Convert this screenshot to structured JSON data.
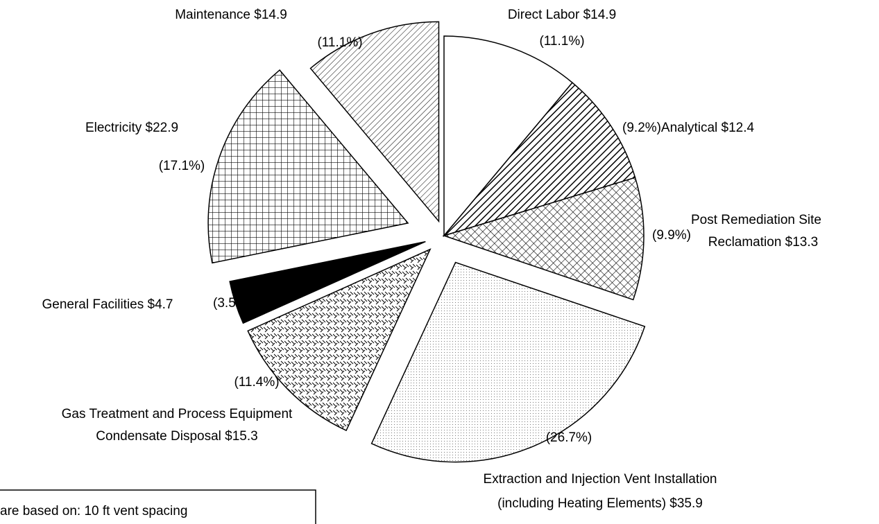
{
  "chart_data": {
    "type": "pie",
    "categories": [
      [
        "Direct Labor  $14.9"
      ],
      [
        "Analytical $12.4"
      ],
      [
        "Post Remediation Site",
        "Reclamation $13.3"
      ],
      [
        "Extraction and Injection Vent Installation",
        "(including Heating Elements)  $35.9"
      ],
      [
        "Gas Treatment and Process Equipment",
        "Condensate Disposal $15.3"
      ],
      [
        "General Facilities $4.7"
      ],
      [
        "Electricity $22.9"
      ],
      [
        "Maintenance $14.9"
      ]
    ],
    "values": [
      11.1,
      9.2,
      9.9,
      26.7,
      11.4,
      3.5,
      17.1,
      11.1
    ],
    "value_labels": [
      "(11.1%)",
      "(9.2%)",
      "(9.9%)",
      "(26.7%)",
      "(11.4%)",
      "(3.5%)",
      "(17.1%)",
      "(11.1%)"
    ],
    "note": "are based on:  10 ft vent spacing"
  }
}
